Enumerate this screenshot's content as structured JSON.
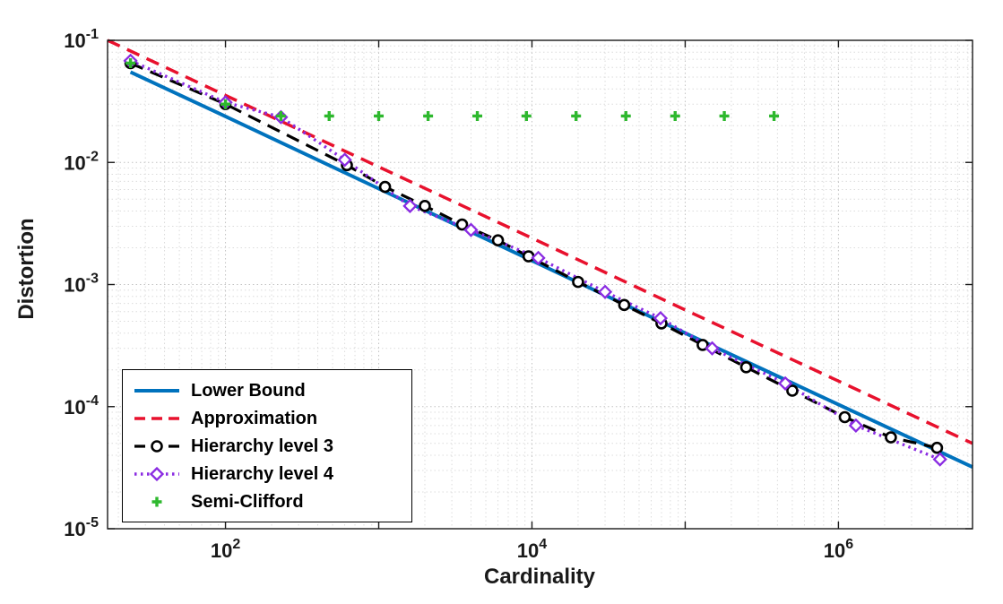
{
  "chart_data": {
    "type": "line",
    "title": "",
    "xlabel": "Cardinality",
    "ylabel": "Distortion",
    "x_scale": "log",
    "y_scale": "log",
    "xlim": [
      17,
      7500000
    ],
    "ylim": [
      1e-05,
      0.1
    ],
    "x_tick_exponents": [
      2,
      4,
      6
    ],
    "y_tick_exponents": [
      -1,
      -2,
      -3,
      -4,
      -5
    ],
    "grid": "on",
    "minor_grid": "on",
    "legend_position": "bottom-left",
    "colors": {
      "lower_bound": "#0072bd",
      "approximation": "#e8112d",
      "hierarchy3": "#000000",
      "hierarchy4": "#8a2be2",
      "semi_clifford": "#2eb82e"
    },
    "series": [
      {
        "name": "lower-bound",
        "label": "Lower Bound",
        "color": "#0072bd",
        "line": "solid",
        "line_width": 4,
        "marker": "none",
        "x": [
          24,
          100,
          1000,
          10000,
          100000,
          1000000,
          7500000
        ],
        "y": [
          0.055,
          0.0238,
          0.0061,
          0.00157,
          0.0004,
          0.000104,
          3.2e-05
        ]
      },
      {
        "name": "approximation",
        "label": "Approximation",
        "color": "#e8112d",
        "line": "dashed",
        "line_width": 3.5,
        "marker": "none",
        "x": [
          17,
          100,
          1000,
          10000,
          100000,
          1000000,
          7500000
        ],
        "y": [
          0.1,
          0.0354,
          0.0092,
          0.0024,
          0.00062,
          0.000162,
          5e-05
        ]
      },
      {
        "name": "hierarchy-level-3",
        "label": "Hierarchy level 3",
        "color": "#000000",
        "line": "dashed",
        "line_width": 3.2,
        "marker": "circle",
        "x": [
          24,
          100,
          620,
          1100,
          2000,
          3500,
          6000,
          9500,
          20000,
          40000,
          70000,
          130000,
          250000,
          500000,
          1100000,
          2200000,
          4400000
        ],
        "y": [
          0.065,
          0.03,
          0.0095,
          0.0063,
          0.0044,
          0.0031,
          0.0023,
          0.0017,
          0.00105,
          0.00068,
          0.00048,
          0.00032,
          0.00021,
          0.000135,
          8.2e-05,
          5.6e-05,
          4.6e-05
        ]
      },
      {
        "name": "hierarchy-level-4",
        "label": "Hierarchy level 4",
        "color": "#8a2be2",
        "line": "dotted",
        "line_width": 3.4,
        "marker": "diamond",
        "x": [
          24,
          100,
          230,
          600,
          1600,
          4000,
          11000,
          30000,
          69000,
          150000,
          450000,
          1300000,
          4600000
        ],
        "y": [
          0.068,
          0.031,
          0.0235,
          0.0105,
          0.0044,
          0.0028,
          0.00165,
          0.00087,
          0.00053,
          0.0003,
          0.000155,
          7e-05,
          3.7e-05
        ]
      },
      {
        "name": "semi-clifford",
        "label": "Semi-Clifford",
        "color": "#2eb82e",
        "line": "none",
        "line_width": 0,
        "marker": "plus",
        "x": [
          24,
          100,
          230,
          475,
          1000,
          2100,
          4400,
          9200,
          19400,
          41000,
          86000,
          180000,
          380000
        ],
        "y": [
          0.065,
          0.03,
          0.024,
          0.024,
          0.024,
          0.024,
          0.024,
          0.024,
          0.024,
          0.024,
          0.024,
          0.024,
          0.024
        ]
      }
    ]
  }
}
